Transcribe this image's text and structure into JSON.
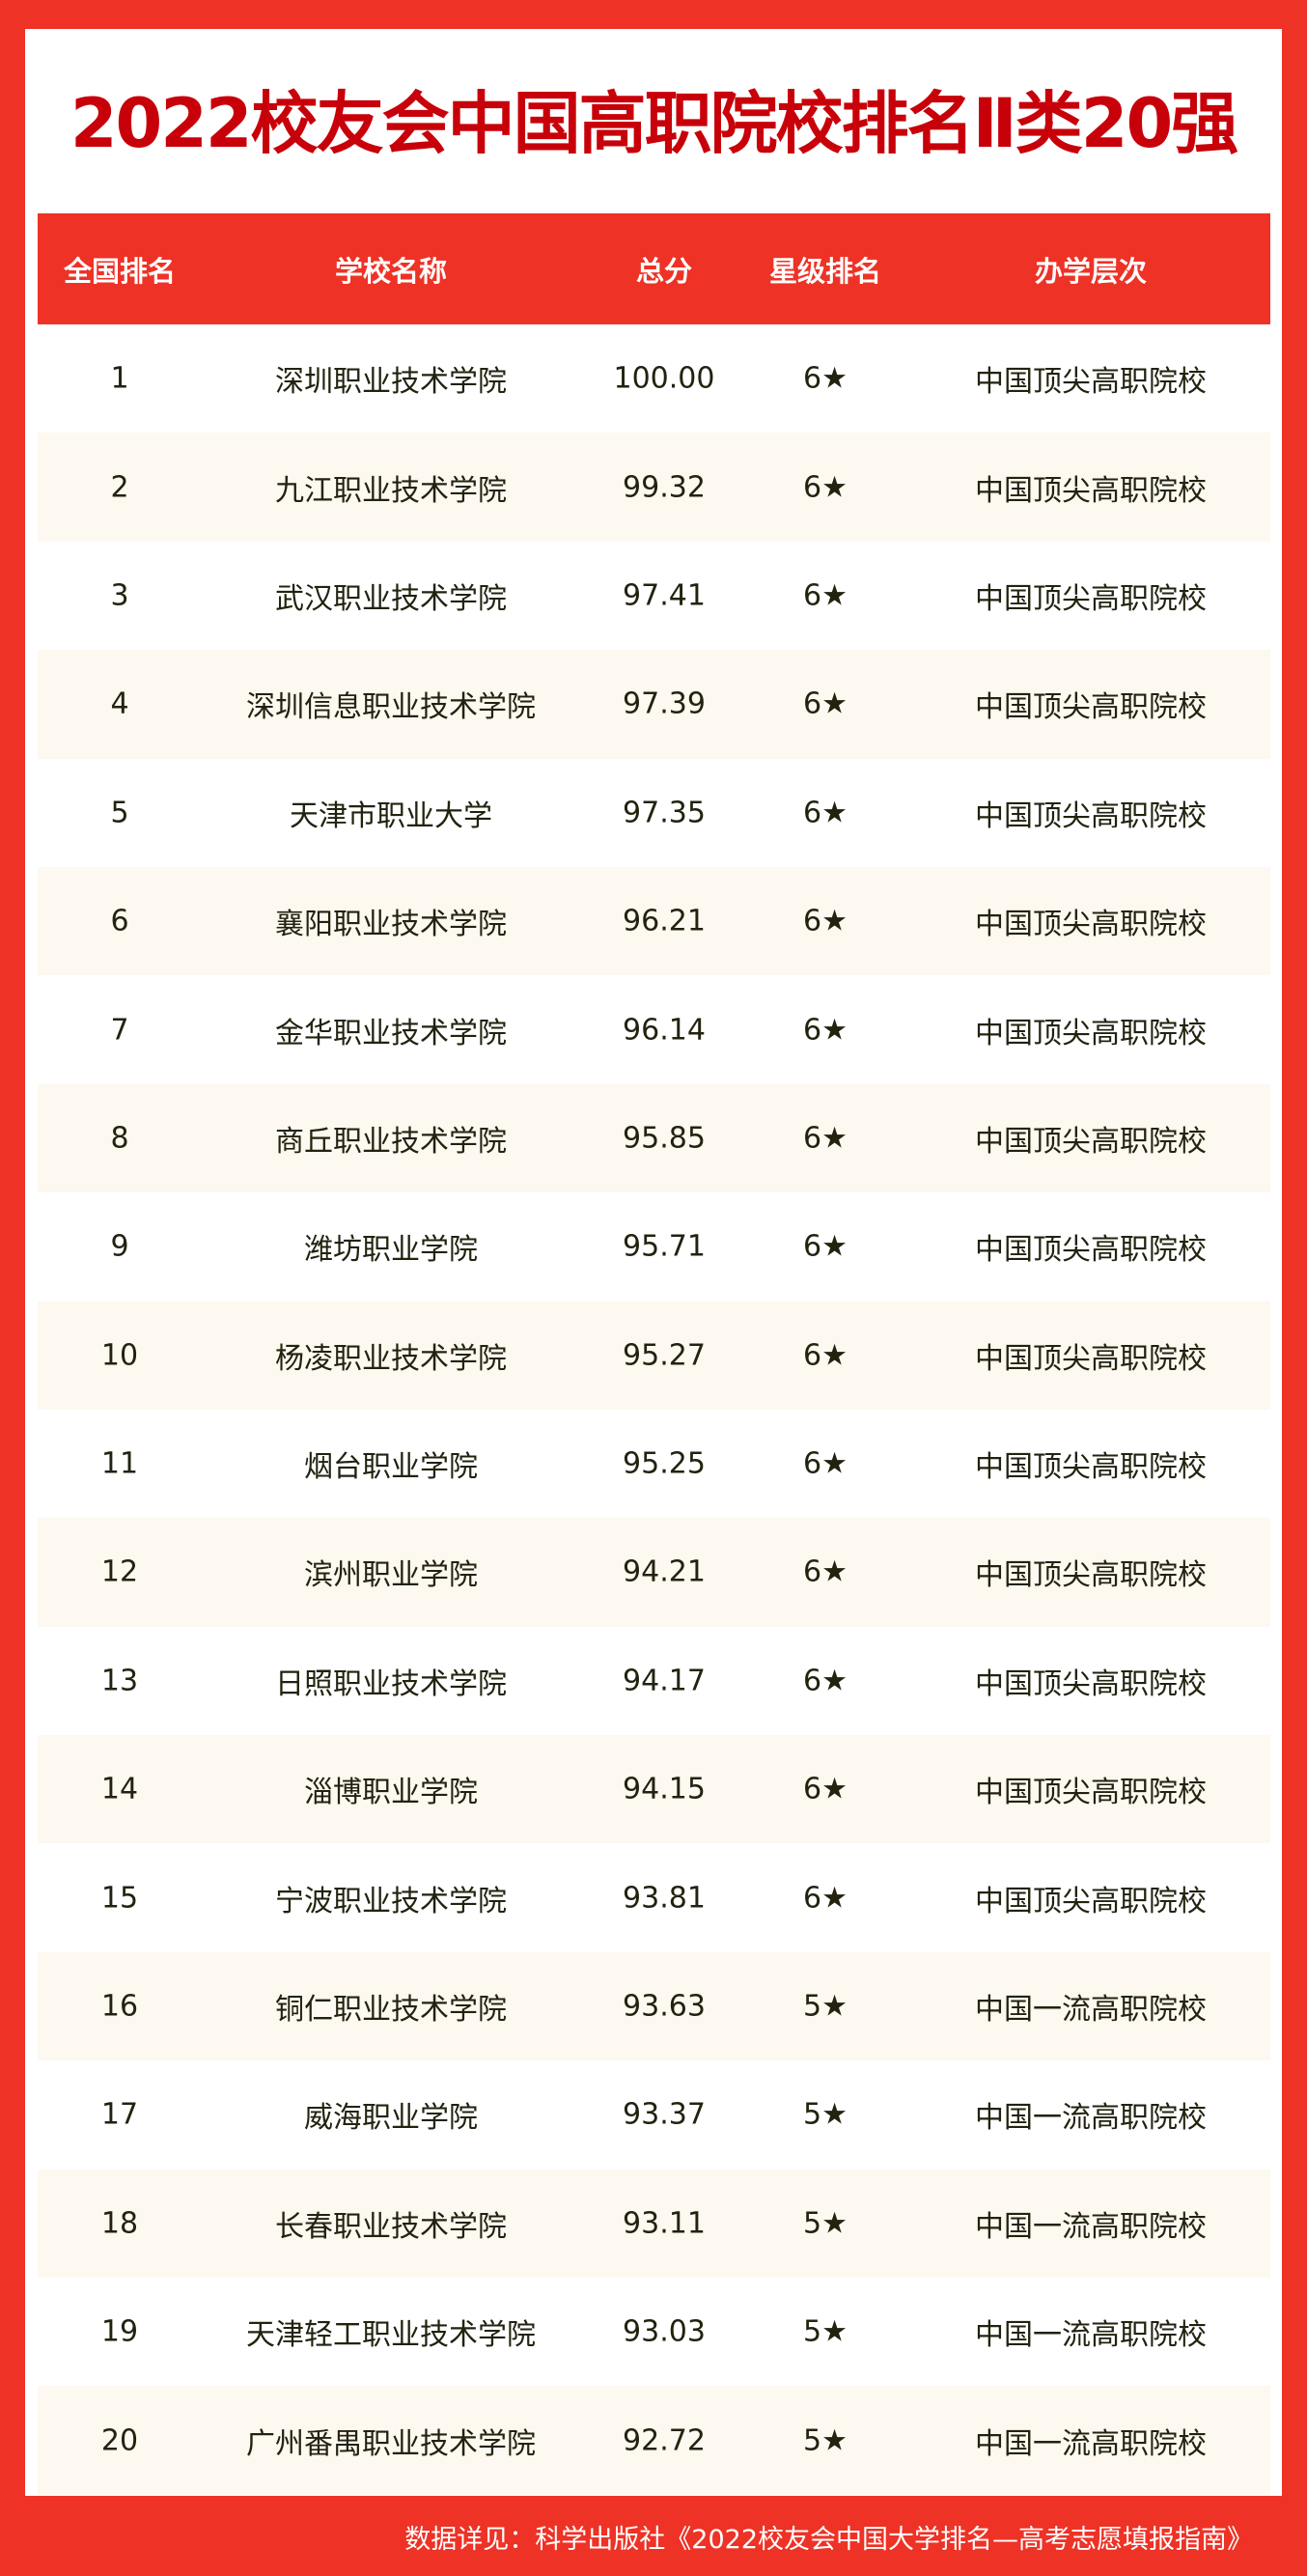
{
  "title": "2022校友会中国高职院校排名Ⅱ类20强",
  "headers": [
    "全国排名",
    "学校名称",
    "总分",
    "星级排名",
    "办学层次"
  ],
  "rows": [
    [
      "1",
      "深圳职业技术学院",
      "100.00",
      "6★",
      "中国顶尖高职院校"
    ],
    [
      "2",
      "九江职业技术学院",
      "99.32",
      "6★",
      "中国顶尖高职院校"
    ],
    [
      "3",
      "武汉职业技术学院",
      "97.41",
      "6★",
      "中国顶尖高职院校"
    ],
    [
      "4",
      "深圳信息职业技术学院",
      "97.39",
      "6★",
      "中国顶尖高职院校"
    ],
    [
      "5",
      "天津市职业大学",
      "97.35",
      "6★",
      "中国顶尖高职院校"
    ],
    [
      "6",
      "襄阳职业技术学院",
      "96.21",
      "6★",
      "中国顶尖高职院校"
    ],
    [
      "7",
      "金华职业技术学院",
      "96.14",
      "6★",
      "中国顶尖高职院校"
    ],
    [
      "8",
      "商丘职业技术学院",
      "95.85",
      "6★",
      "中国顶尖高职院校"
    ],
    [
      "9",
      "潍坊职业学院",
      "95.71",
      "6★",
      "中国顶尖高职院校"
    ],
    [
      "10",
      "杨凌职业技术学院",
      "95.27",
      "6★",
      "中国顶尖高职院校"
    ],
    [
      "11",
      "烟台职业学院",
      "95.25",
      "6★",
      "中国顶尖高职院校"
    ],
    [
      "12",
      "滨州职业学院",
      "94.21",
      "6★",
      "中国顶尖高职院校"
    ],
    [
      "13",
      "日照职业技术学院",
      "94.17",
      "6★",
      "中国顶尖高职院校"
    ],
    [
      "14",
      "淄博职业学院",
      "94.15",
      "6★",
      "中国顶尖高职院校"
    ],
    [
      "15",
      "宁波职业技术学院",
      "93.81",
      "6★",
      "中国顶尖高职院校"
    ],
    [
      "16",
      "铜仁职业技术学院",
      "93.63",
      "5★",
      "中国一流高职院校"
    ],
    [
      "17",
      "威海职业学院",
      "93.37",
      "5★",
      "中国一流高职院校"
    ],
    [
      "18",
      "长春职业技术学院",
      "93.11",
      "5★",
      "中国一流高职院校"
    ],
    [
      "19",
      "天津轻工职业技术学院",
      "93.03",
      "5★",
      "中国一流高职院校"
    ],
    [
      "20",
      "广州番禺职业技术学院",
      "92.72",
      "5★",
      "中国一流高职院校"
    ]
  ],
  "footer": "数据详见：科学出版社《2022校友会中国大学排名—高考志愿填报指南》",
  "colors": {
    "border": "#ee3226",
    "title": "#c8000a",
    "alt_row": "#fdf8f0"
  }
}
